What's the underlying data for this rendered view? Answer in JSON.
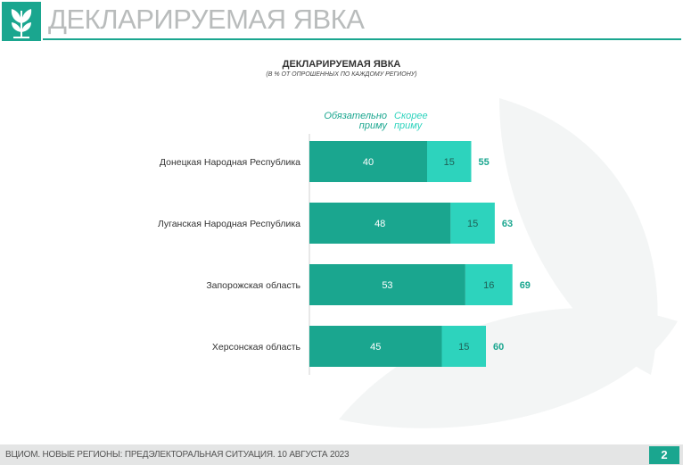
{
  "header": {
    "title": "ДЕКЛАРИРУЕМАЯ ЯВКА",
    "logo_icon": "tree-logo-icon"
  },
  "chart_data": {
    "type": "bar",
    "stacked": true,
    "orientation": "horizontal",
    "title": "ДЕКЛАРИРУЕМАЯ ЯВКА",
    "subtitle": "(В % ОТ ОПРОШЕННЫХ ПО КАЖДОМУ РЕГИОНУ)",
    "categories": [
      "Донецкая Народная Республика",
      "Луганская Народная Республика",
      "Запорожская область",
      "Херсонская область"
    ],
    "series": [
      {
        "name": "Обязательно приму",
        "values": [
          40,
          48,
          53,
          45
        ],
        "color": "#1aa68f"
      },
      {
        "name": "Скорее приму",
        "values": [
          15,
          15,
          16,
          15
        ],
        "color": "#2dd3bd"
      }
    ],
    "totals": [
      55,
      63,
      69,
      60
    ],
    "legend_placement": "top",
    "grid": false,
    "xlim": [
      0,
      100
    ]
  },
  "footer": {
    "text": "ВЦИОМ. НОВЫЕ РЕГИОНЫ: ПРЕДЭЛЕКТОРАЛЬНАЯ СИТУАЦИЯ. 10 АВГУСТА 2023",
    "page": "2"
  },
  "colors": {
    "accent": "#1aa68f",
    "accent_light": "#2dd3bd",
    "total_text": "#1aa68f"
  }
}
